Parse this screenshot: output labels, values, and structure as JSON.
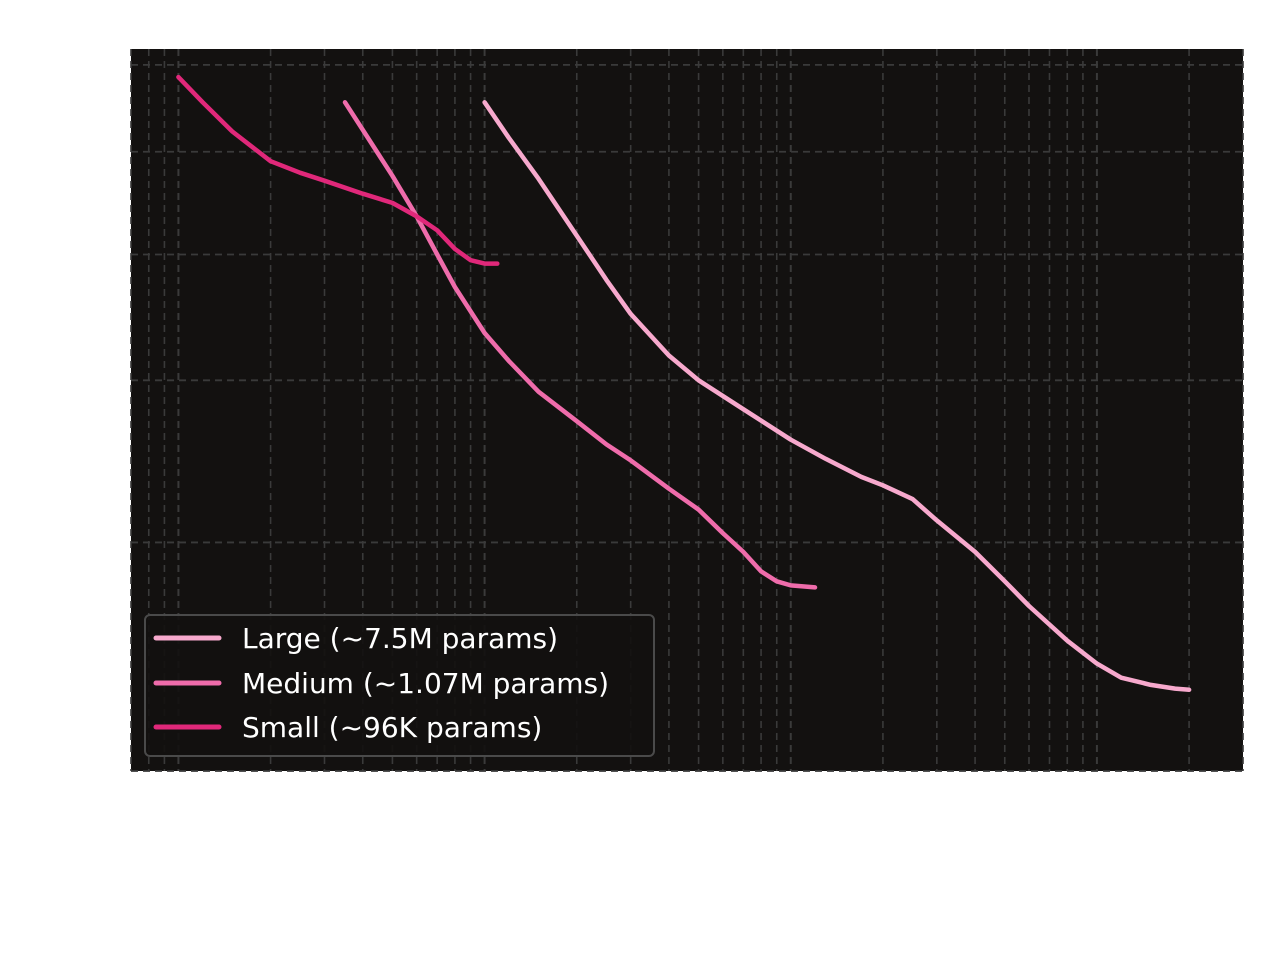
{
  "chart_data": {
    "type": "line",
    "title": "",
    "xlabel": "",
    "ylabel": "",
    "xscale": "log",
    "yscale": "log",
    "xlim": [
      0.7,
      3000
    ],
    "ylim": [
      2.0,
      7.2
    ],
    "grid": true,
    "legend_position": "lower-left",
    "colors": {
      "background": "#131110",
      "grid": "#3a3a3a",
      "legend_border": "#4a4a4a"
    },
    "series": [
      {
        "name": "Large (~7.5M params)",
        "color": "#f7a9cd",
        "x": [
          10,
          12,
          15,
          20,
          25,
          30,
          40,
          50,
          70,
          100,
          130,
          170,
          200,
          250,
          300,
          400,
          500,
          600,
          800,
          1000,
          1200,
          1500,
          1800,
          2000
        ],
        "y": [
          6.55,
          6.15,
          5.72,
          5.17,
          4.78,
          4.5,
          4.18,
          4.0,
          3.8,
          3.6,
          3.48,
          3.37,
          3.32,
          3.24,
          3.12,
          2.95,
          2.8,
          2.68,
          2.52,
          2.42,
          2.36,
          2.33,
          2.315,
          2.31
        ]
      },
      {
        "name": "Medium (~1.07M params)",
        "color": "#ef6cab",
        "x": [
          3.5,
          5,
          6,
          7,
          8,
          10,
          12,
          15,
          20,
          25,
          30,
          40,
          50,
          60,
          70,
          80,
          90,
          100,
          120
        ],
        "y": [
          6.55,
          5.75,
          5.35,
          5.0,
          4.72,
          4.35,
          4.14,
          3.92,
          3.72,
          3.57,
          3.47,
          3.3,
          3.18,
          3.05,
          2.95,
          2.85,
          2.8,
          2.78,
          2.77
        ]
      },
      {
        "name": "Small (~96K params)",
        "color": "#e0287a",
        "x": [
          1.0,
          1.2,
          1.5,
          2.0,
          2.5,
          3.0,
          4.0,
          5.0,
          6.0,
          7.0,
          8.0,
          9.0,
          10.0,
          11.0
        ],
        "y": [
          6.85,
          6.55,
          6.22,
          5.9,
          5.78,
          5.7,
          5.57,
          5.48,
          5.35,
          5.22,
          5.05,
          4.95,
          4.92,
          4.92
        ]
      }
    ]
  }
}
